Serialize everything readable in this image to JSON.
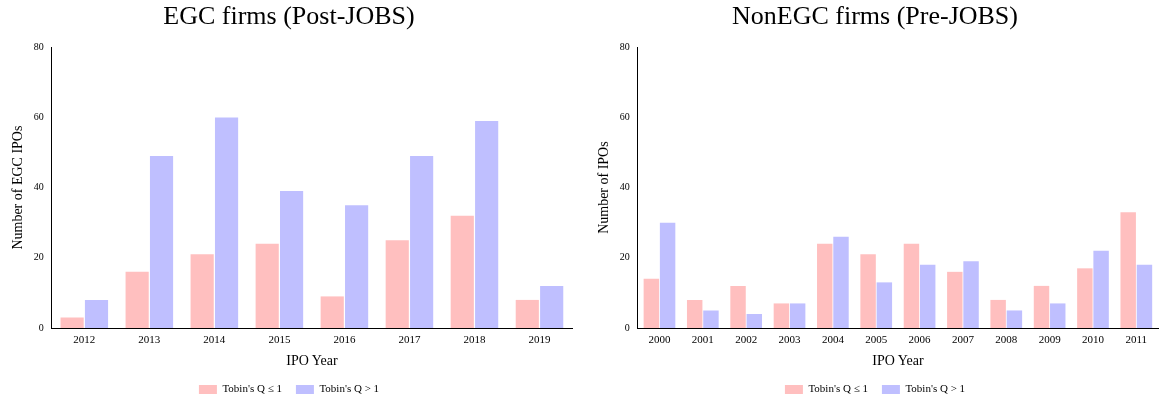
{
  "chart_data": [
    {
      "type": "bar",
      "title": "EGC firms (Post-JOBS)",
      "xlabel": "IPO Year",
      "ylabel": "Number of EGC IPOs",
      "categories": [
        "2012",
        "2013",
        "2014",
        "2015",
        "2016",
        "2017",
        "2018",
        "2019"
      ],
      "series": [
        {
          "name": "Tobin's Q ≤ 1",
          "color": "#ffbfbf",
          "values": [
            3,
            16,
            21,
            24,
            9,
            25,
            32,
            8
          ]
        },
        {
          "name": "Tobin's Q > 1",
          "color": "#bfbfff",
          "values": [
            8,
            49,
            60,
            39,
            35,
            49,
            59,
            12
          ]
        }
      ],
      "ylim": [
        0,
        80
      ],
      "yticks": [
        0,
        20,
        40,
        60,
        80
      ],
      "grid": false,
      "legend": "bottom"
    },
    {
      "type": "bar",
      "title": "NonEGC firms (Pre-JOBS)",
      "xlabel": "IPO Year",
      "ylabel": "Number of IPOs",
      "categories": [
        "2000",
        "2001",
        "2002",
        "2003",
        "2004",
        "2005",
        "2006",
        "2007",
        "2008",
        "2009",
        "2010",
        "2011"
      ],
      "series": [
        {
          "name": "Tobin's Q ≤ 1",
          "color": "#ffbfbf",
          "values": [
            14,
            8,
            12,
            7,
            24,
            21,
            24,
            16,
            8,
            12,
            17,
            33
          ]
        },
        {
          "name": "Tobin's Q > 1",
          "color": "#bfbfff",
          "values": [
            30,
            5,
            4,
            7,
            26,
            13,
            18,
            19,
            5,
            7,
            22,
            18
          ]
        }
      ],
      "ylim": [
        0,
        80
      ],
      "yticks": [
        0,
        20,
        40,
        60,
        80
      ],
      "grid": false,
      "legend": "bottom"
    }
  ]
}
